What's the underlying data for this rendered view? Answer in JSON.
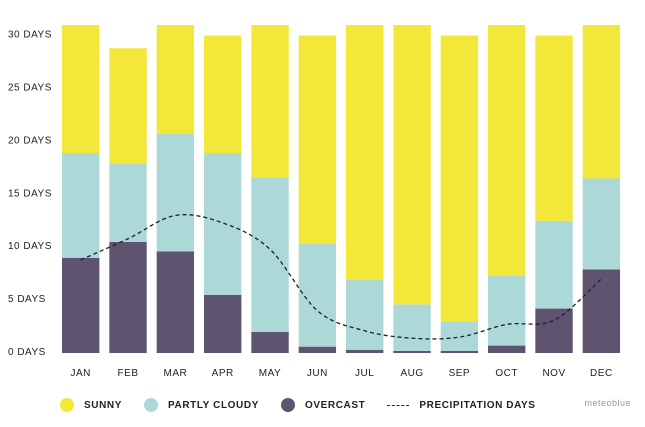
{
  "chart_data": {
    "type": "bar",
    "stacked": true,
    "categories": [
      "JAN",
      "FEB",
      "MAR",
      "APR",
      "MAY",
      "JUN",
      "JUL",
      "AUG",
      "SEP",
      "OCT",
      "NOV",
      "DEC"
    ],
    "y_ticks": [
      "0 DAYS",
      "5 DAYS",
      "10 DAYS",
      "15 DAYS",
      "20 DAYS",
      "25 DAYS",
      "30 DAYS"
    ],
    "ylim": [
      0,
      31
    ],
    "series": [
      {
        "name": "OVERCAST",
        "color": "#5e5470",
        "values": [
          9.0,
          10.5,
          9.6,
          5.5,
          2.0,
          0.6,
          0.3,
          0.2,
          0.2,
          0.7,
          4.2,
          7.9
        ]
      },
      {
        "name": "PARTLY CLOUDY",
        "color": "#acd8d8",
        "values": [
          9.9,
          7.4,
          11.1,
          13.4,
          14.6,
          9.7,
          6.6,
          4.4,
          2.8,
          6.6,
          8.3,
          8.6
        ]
      },
      {
        "name": "SUNNY",
        "color": "#f3e839",
        "values": [
          12.1,
          10.9,
          10.3,
          11.1,
          14.4,
          19.7,
          24.1,
          26.4,
          27.0,
          23.7,
          17.5,
          14.5
        ]
      }
    ],
    "line_series": {
      "name": "PRECIPITATION DAYS",
      "color": "#1f1f2e",
      "values": [
        8.8,
        10.8,
        13.0,
        12.3,
        9.8,
        4.0,
        2.1,
        1.4,
        1.5,
        2.7,
        3.1,
        7.0
      ]
    },
    "legend": [
      "SUNNY",
      "PARTLY CLOUDY",
      "OVERCAST",
      "PRECIPITATION DAYS"
    ],
    "legend_position": "bottom-left",
    "grid": false
  },
  "brand": "meteoblue"
}
